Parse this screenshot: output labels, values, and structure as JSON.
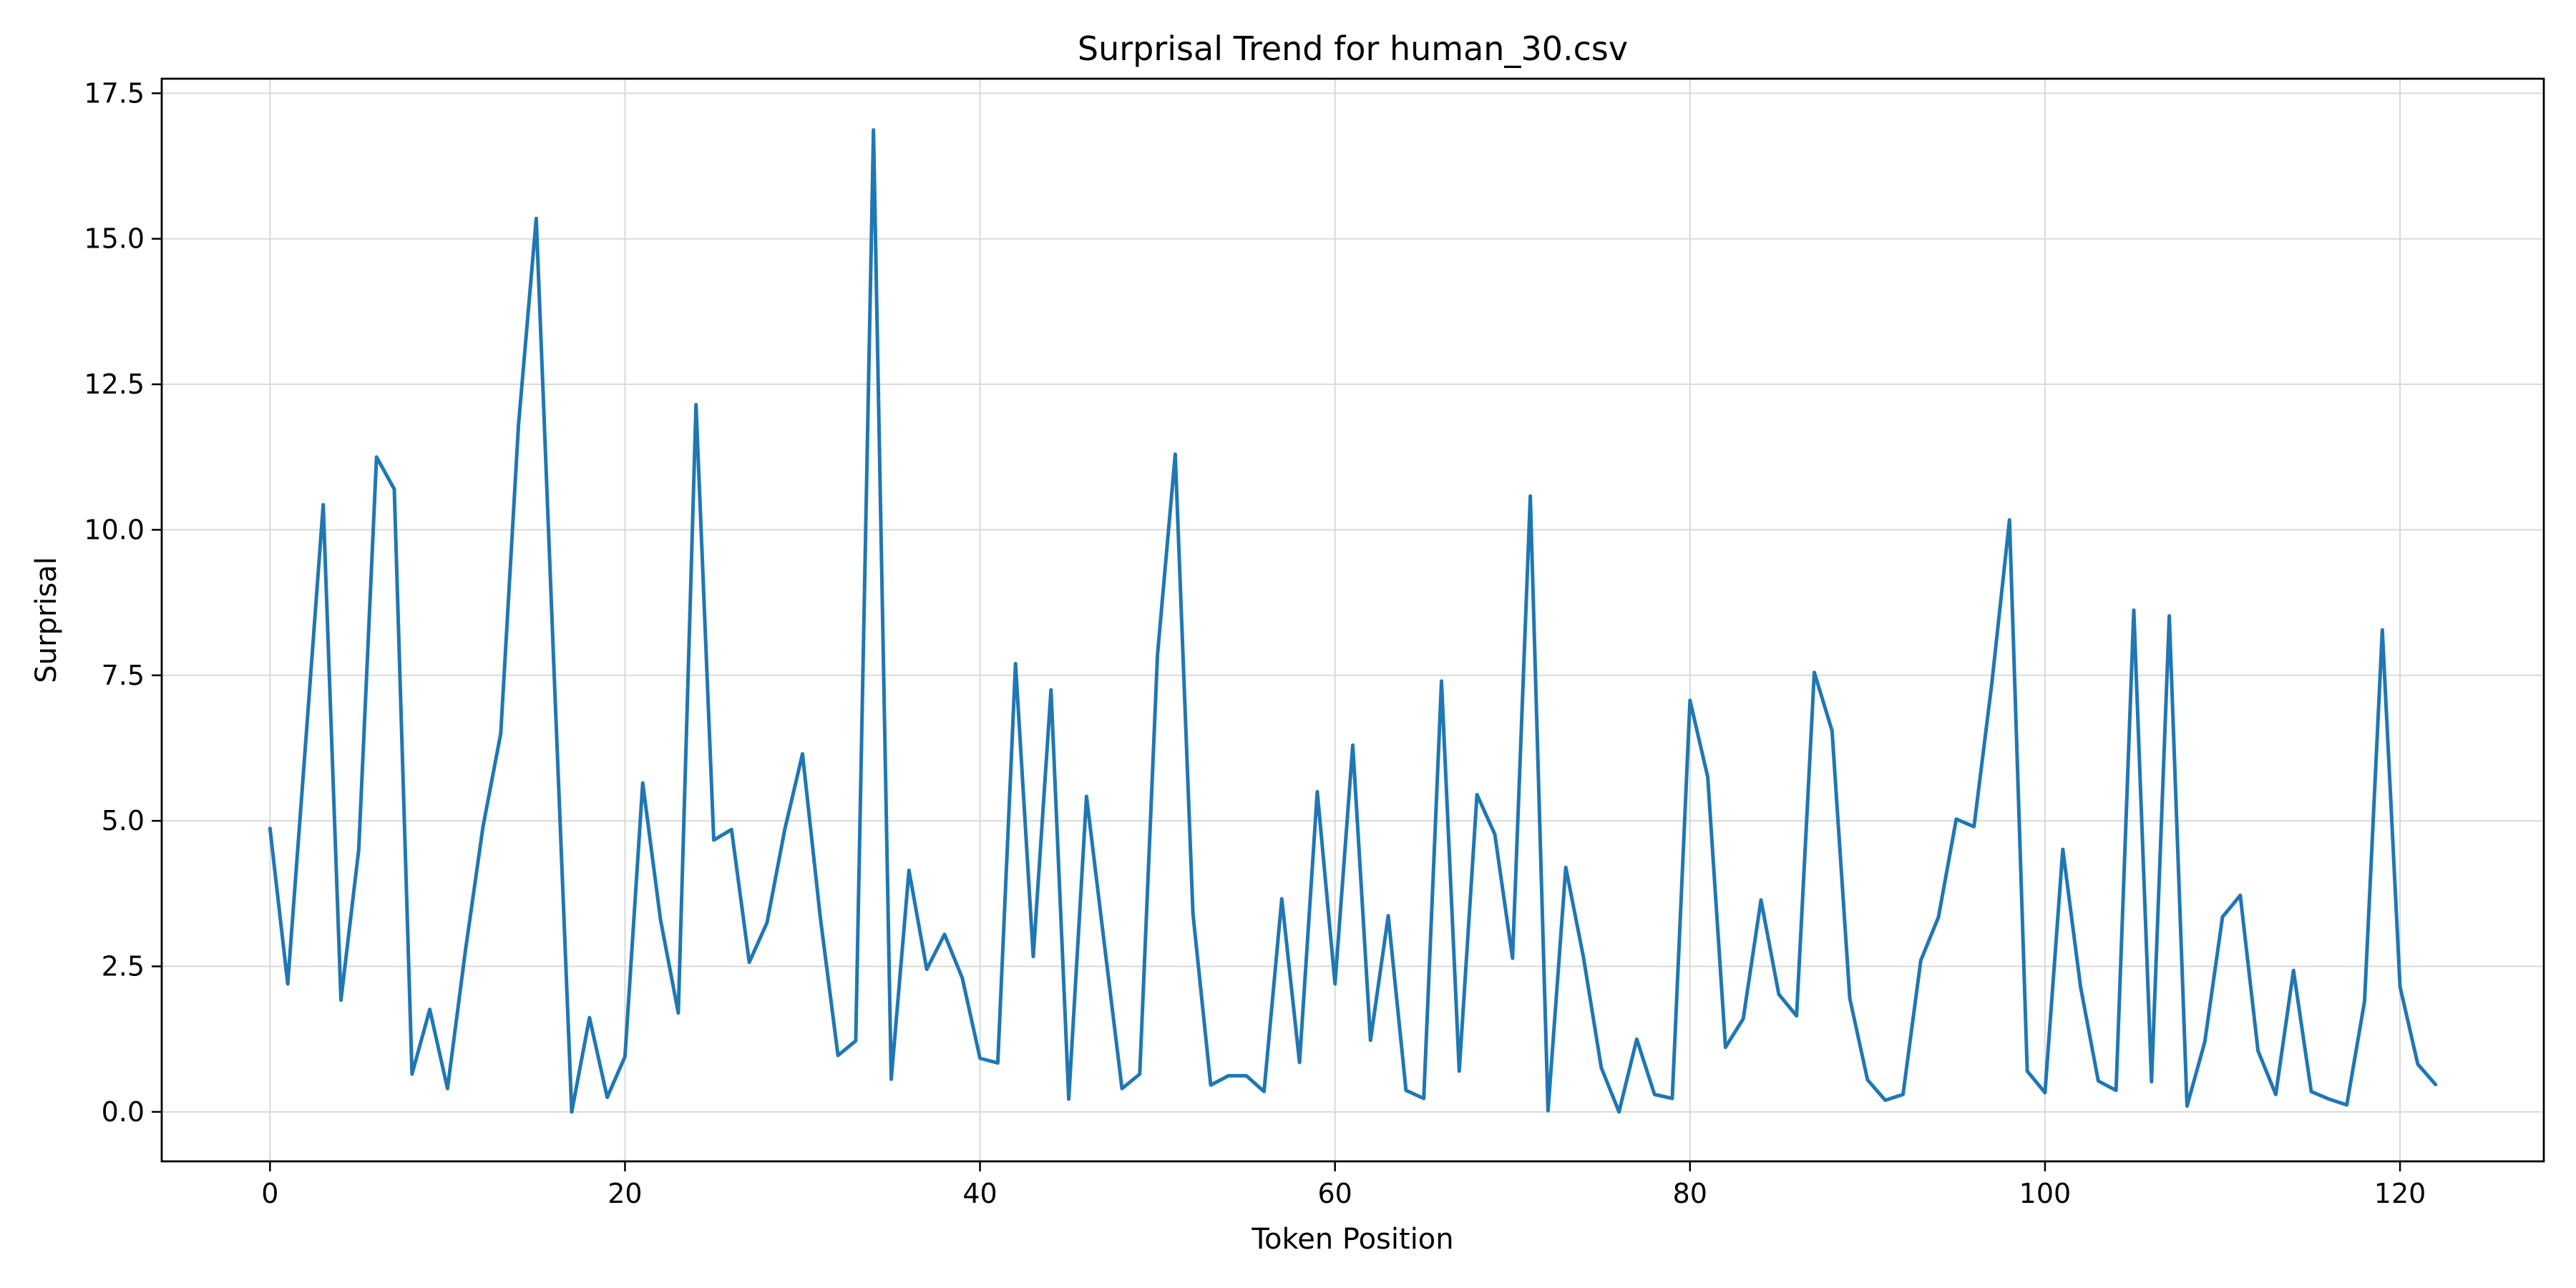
{
  "chart_data": {
    "type": "line",
    "title": "Surprisal Trend for human_30.csv",
    "xlabel": "Token Position",
    "ylabel": "Surprisal",
    "xlim": [
      -6.1,
      128.1
    ],
    "ylim": [
      -0.85,
      17.75
    ],
    "xticks": [
      0,
      20,
      40,
      60,
      80,
      100,
      120
    ],
    "xtick_labels": [
      "0",
      "20",
      "40",
      "60",
      "80",
      "100",
      "120"
    ],
    "yticks": [
      0.0,
      2.5,
      5.0,
      7.5,
      10.0,
      12.5,
      15.0,
      17.5
    ],
    "ytick_labels": [
      "0.0",
      "2.5",
      "5.0",
      "7.5",
      "10.0",
      "12.5",
      "15.0",
      "17.5"
    ],
    "grid": true,
    "legend": "none",
    "series": [
      {
        "color": "#1f77b4",
        "x": [
          0,
          1,
          2,
          3,
          4,
          5,
          6,
          7,
          8,
          9,
          10,
          11,
          12,
          13,
          14,
          15,
          16,
          17,
          18,
          19,
          20,
          21,
          22,
          23,
          24,
          25,
          26,
          27,
          28,
          29,
          30,
          31,
          32,
          33,
          34,
          35,
          36,
          37,
          38,
          39,
          40,
          41,
          42,
          43,
          44,
          45,
          46,
          47,
          48,
          49,
          50,
          51,
          52,
          53,
          54,
          55,
          56,
          57,
          58,
          59,
          60,
          61,
          62,
          63,
          64,
          65,
          66,
          67,
          68,
          69,
          70,
          71,
          72,
          73,
          74,
          75,
          76,
          77,
          78,
          79,
          80,
          81,
          82,
          83,
          84,
          85,
          86,
          87,
          88,
          89,
          90,
          91,
          92,
          93,
          94,
          95,
          96,
          97,
          98,
          99,
          100,
          101,
          102,
          103,
          104,
          105,
          106,
          107,
          108,
          109,
          110,
          111,
          112,
          113,
          114,
          115,
          116,
          117,
          118,
          119,
          120,
          121,
          122
        ],
        "y": [
          4.87,
          2.2,
          6.3,
          10.43,
          1.92,
          4.5,
          11.25,
          10.7,
          0.65,
          1.76,
          0.4,
          2.75,
          4.9,
          6.5,
          11.8,
          15.35,
          7.6,
          0.0,
          1.62,
          0.25,
          0.95,
          5.65,
          3.3,
          1.7,
          12.15,
          4.67,
          4.85,
          2.57,
          3.25,
          4.85,
          6.15,
          3.35,
          0.97,
          1.22,
          16.87,
          0.56,
          4.15,
          2.45,
          3.05,
          2.3,
          0.92,
          0.84,
          7.7,
          2.67,
          7.25,
          0.22,
          5.42,
          2.9,
          0.4,
          0.65,
          7.85,
          11.3,
          3.4,
          0.46,
          0.62,
          0.62,
          0.35,
          3.66,
          0.85,
          5.5,
          2.2,
          6.3,
          1.23,
          3.37,
          0.37,
          0.23,
          7.4,
          0.7,
          5.45,
          4.77,
          2.64,
          10.58,
          0.02,
          4.2,
          2.65,
          0.76,
          0.0,
          1.25,
          0.3,
          0.23,
          7.07,
          5.75,
          1.11,
          1.6,
          3.64,
          2.02,
          1.65,
          7.55,
          6.55,
          1.95,
          0.55,
          0.2,
          0.3,
          2.6,
          3.35,
          5.03,
          4.9,
          7.35,
          10.17,
          0.7,
          0.33,
          4.51,
          2.15,
          0.53,
          0.37,
          8.62,
          0.52,
          8.52,
          0.1,
          1.2,
          3.35,
          3.72,
          1.05,
          0.3,
          2.43,
          0.35,
          0.22,
          0.12,
          1.9,
          8.28,
          2.15,
          0.82,
          0.47
        ]
      }
    ]
  }
}
